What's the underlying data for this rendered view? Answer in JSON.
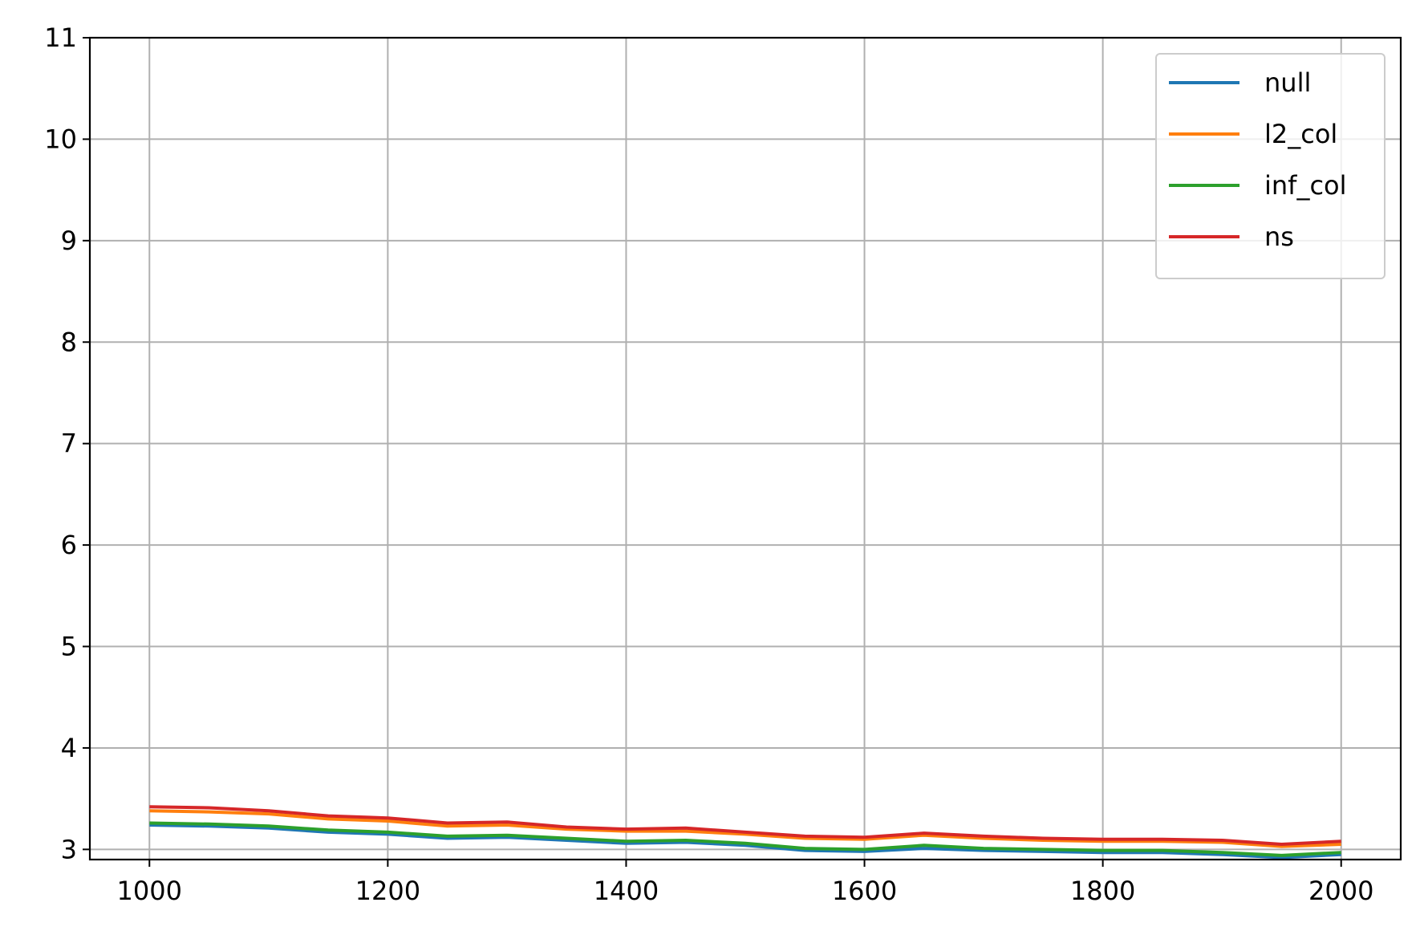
{
  "chart_data": {
    "type": "line",
    "title": "",
    "xlabel": "",
    "ylabel": "",
    "xlim": [
      950,
      2050
    ],
    "ylim": [
      2.9,
      11
    ],
    "xticks": [
      1000,
      1200,
      1400,
      1600,
      1800,
      2000
    ],
    "yticks": [
      3,
      4,
      5,
      6,
      7,
      8,
      9,
      10,
      11
    ],
    "grid": true,
    "legend_position": "top-right",
    "x": [
      1000,
      1050,
      1100,
      1150,
      1200,
      1250,
      1300,
      1350,
      1400,
      1450,
      1500,
      1550,
      1600,
      1650,
      1700,
      1750,
      1800,
      1850,
      1900,
      1950,
      2000
    ],
    "series": [
      {
        "name": "null",
        "color": "#1f77b4",
        "values": [
          3.24,
          3.23,
          3.21,
          3.17,
          3.15,
          3.11,
          3.12,
          3.09,
          3.06,
          3.07,
          3.04,
          2.99,
          2.98,
          3.01,
          2.99,
          2.98,
          2.97,
          2.97,
          2.95,
          2.92,
          2.95
        ]
      },
      {
        "name": "l2_col",
        "color": "#ff7f0e",
        "values": [
          3.38,
          3.37,
          3.35,
          3.3,
          3.28,
          3.23,
          3.24,
          3.2,
          3.18,
          3.18,
          3.15,
          3.11,
          3.1,
          3.14,
          3.11,
          3.09,
          3.08,
          3.08,
          3.07,
          3.03,
          3.05
        ]
      },
      {
        "name": "inf_col",
        "color": "#2ca02c",
        "values": [
          3.26,
          3.25,
          3.23,
          3.19,
          3.17,
          3.13,
          3.14,
          3.11,
          3.08,
          3.09,
          3.06,
          3.01,
          3.0,
          3.04,
          3.01,
          3.0,
          2.99,
          2.99,
          2.97,
          2.94,
          2.97
        ]
      },
      {
        "name": "ns",
        "color": "#d62728",
        "values": [
          3.42,
          3.41,
          3.38,
          3.33,
          3.31,
          3.26,
          3.27,
          3.22,
          3.2,
          3.21,
          3.17,
          3.13,
          3.12,
          3.16,
          3.13,
          3.11,
          3.1,
          3.1,
          3.09,
          3.05,
          3.08
        ]
      }
    ]
  }
}
